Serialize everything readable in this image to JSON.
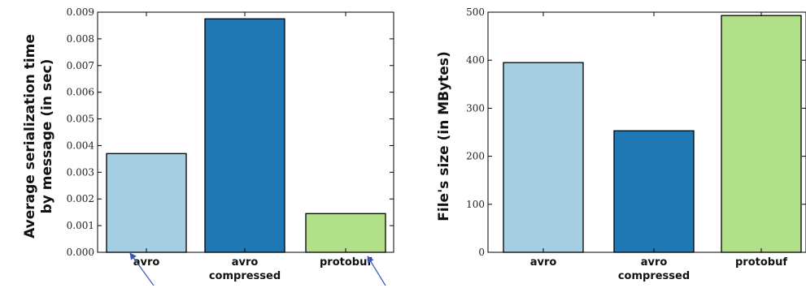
{
  "chart_data": [
    {
      "type": "bar",
      "categories": [
        "avro",
        "avro compressed",
        "protobuf"
      ],
      "values": [
        0.0037,
        0.00875,
        0.00145
      ],
      "title": "",
      "xlabel": "",
      "ylabel_lines": [
        "Average serialization time",
        "by message (in sec)"
      ],
      "ylim": [
        0,
        0.009
      ],
      "yticks": [
        0,
        0.001,
        0.002,
        0.003,
        0.004,
        0.005,
        0.006,
        0.007,
        0.008,
        0.009
      ],
      "ytick_labels": [
        "0.000",
        "0.001",
        "0.002",
        "0.003",
        "0.004",
        "0.005",
        "0.006",
        "0.007",
        "0.008",
        "0.009"
      ],
      "colors": [
        "#a6cee3",
        "#1f78b4",
        "#b2df8a"
      ],
      "grid": false,
      "annotations": [
        "arrow pointing to avro",
        "arrow pointing to protobuf"
      ]
    },
    {
      "type": "bar",
      "categories": [
        "avro",
        "avro compressed",
        "protobuf"
      ],
      "values": [
        395,
        253,
        493
      ],
      "title": "",
      "xlabel": "",
      "ylabel_lines": [
        "File's size (in MBytes)"
      ],
      "ylim": [
        0,
        500
      ],
      "yticks": [
        0,
        100,
        200,
        300,
        400,
        500
      ],
      "ytick_labels": [
        "0",
        "100",
        "200",
        "300",
        "400",
        "500"
      ],
      "colors": [
        "#a6cee3",
        "#1f78b4",
        "#b2df8a"
      ],
      "grid": false,
      "annotations": []
    }
  ]
}
